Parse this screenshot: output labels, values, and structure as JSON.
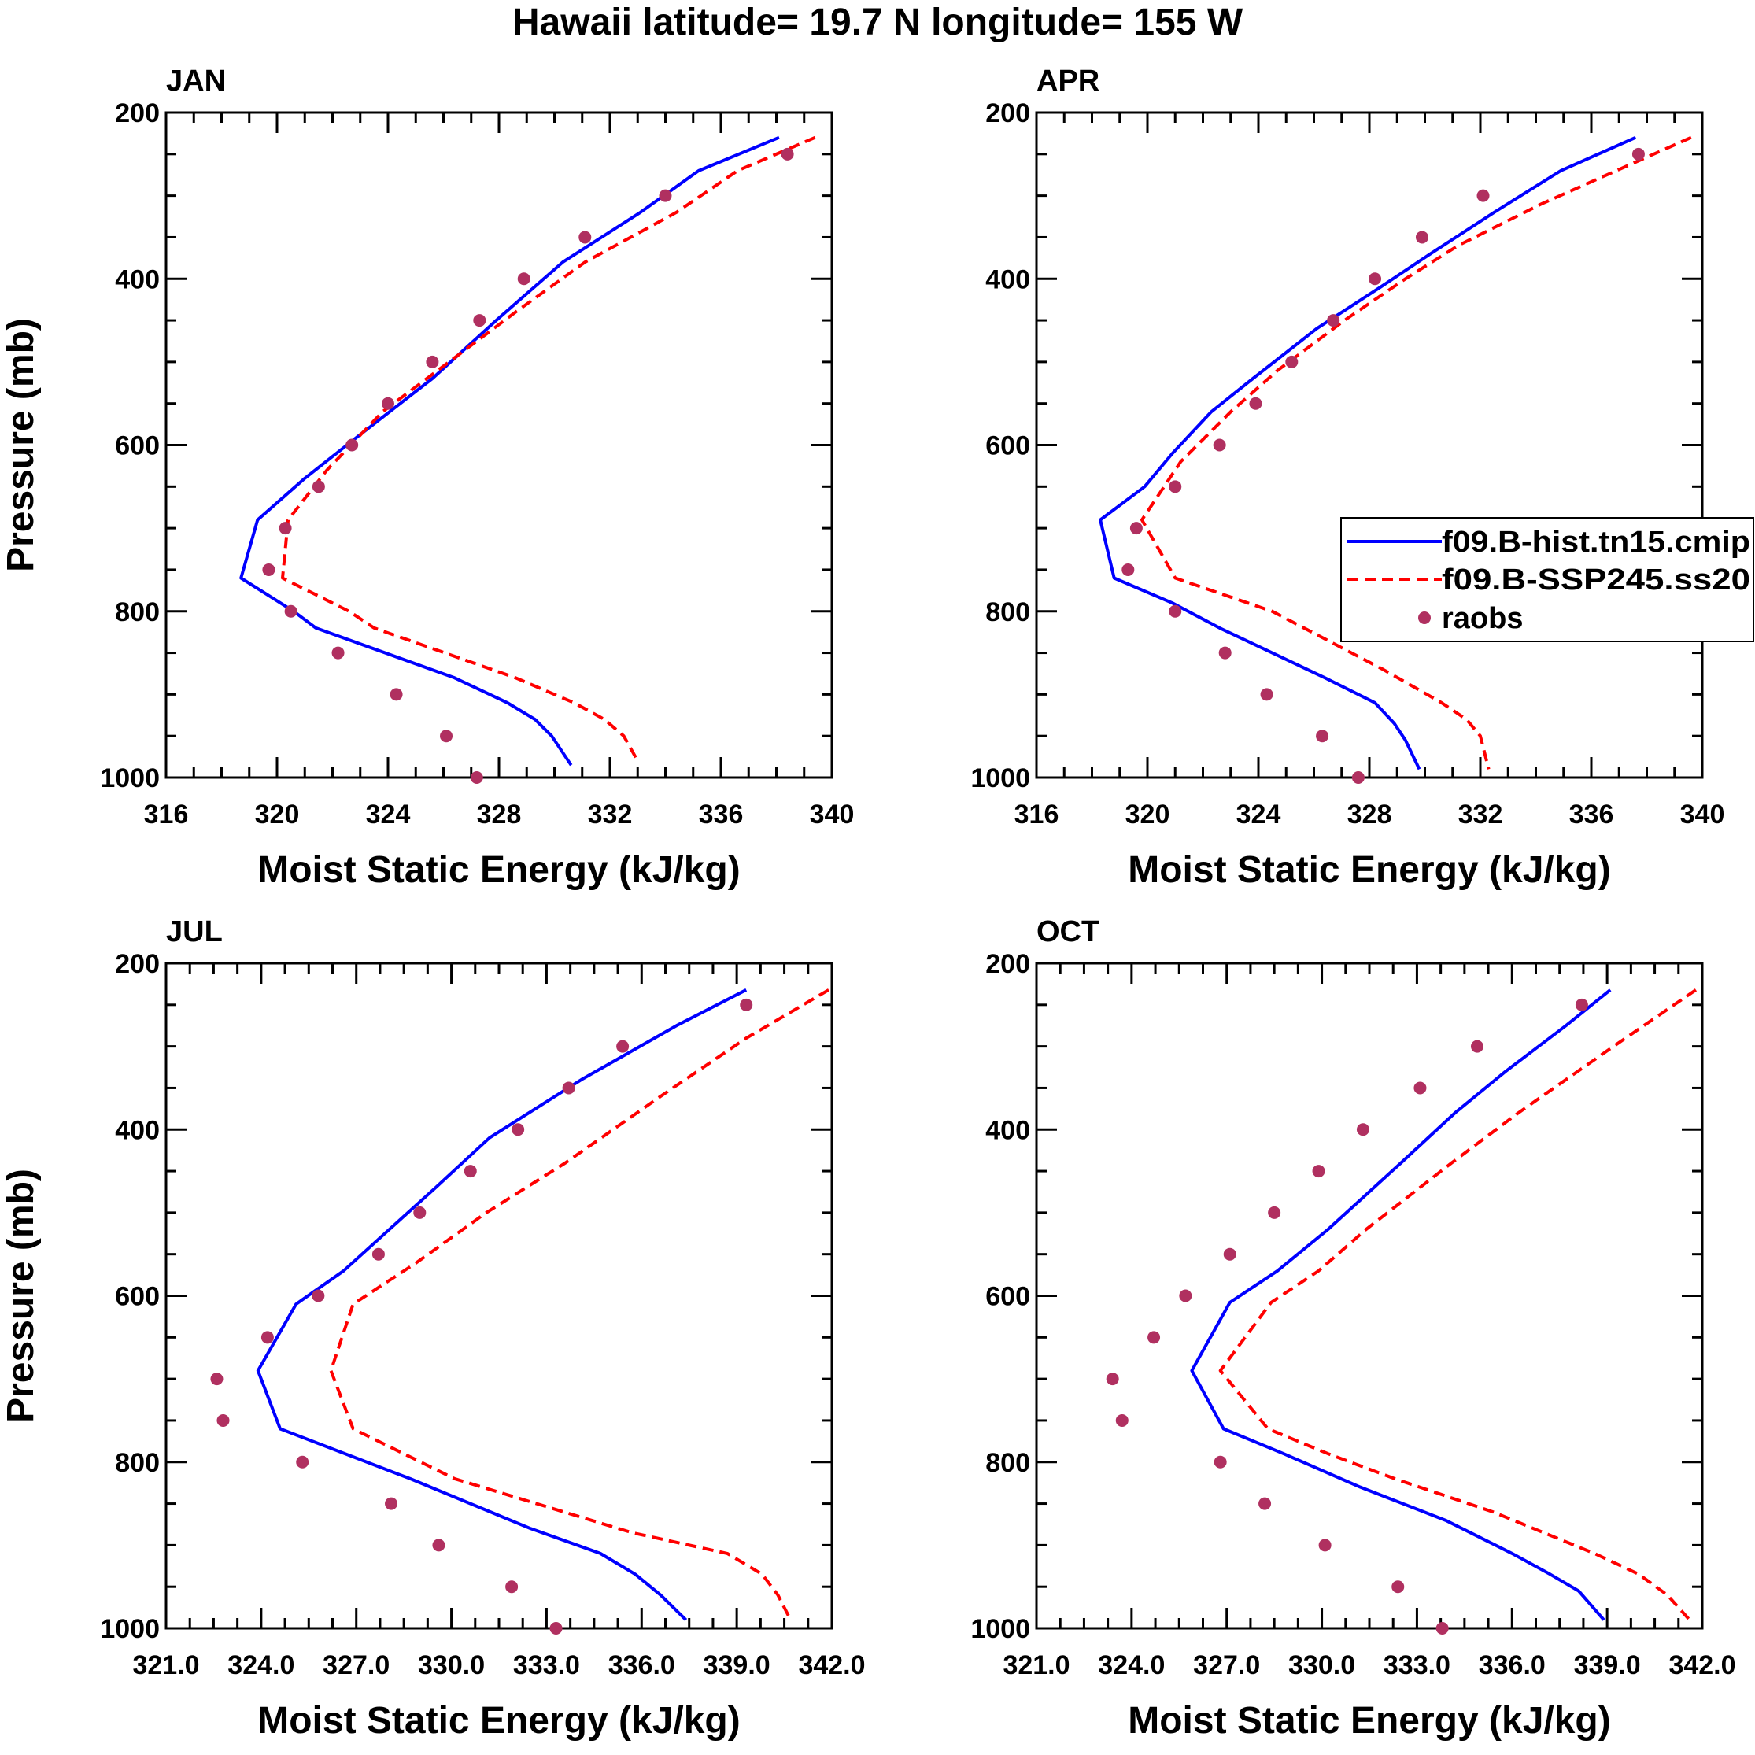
{
  "figure": {
    "title": "Hawaii  latitude= 19.7 N longitude= 155 W",
    "legend": {
      "entries": [
        {
          "label": "f09.B-hist.tn15.cmip",
          "color": "#0000ff",
          "style": "solid"
        },
        {
          "label": "f09.B-SSP245.ss20",
          "color": "#ff0000",
          "style": "dashed"
        },
        {
          "label": "raobs",
          "color": "#b03060",
          "style": "marker"
        }
      ]
    }
  },
  "chart_data": [
    {
      "type": "line",
      "panel": "JAN",
      "title": "JAN",
      "xlabel": "Moist Static Energy (kJ/kg)",
      "ylabel": "Pressure (mb)",
      "xlim": [
        316,
        340
      ],
      "ylim": [
        200,
        1000
      ],
      "y_inverted": true,
      "xticks": [
        316,
        320,
        324,
        328,
        332,
        336,
        340
      ],
      "xtick_labels": [
        "316",
        "320",
        "324",
        "328",
        "332",
        "336",
        "340"
      ],
      "yticks": [
        200,
        400,
        600,
        800,
        1000
      ],
      "ytick_labels": [
        "200",
        "400",
        "600",
        "800",
        "1000"
      ],
      "series": [
        {
          "name": "f09.B-hist.tn15.cmip",
          "style": "solid",
          "color": "#0000ff",
          "points": [
            [
              338.1,
              230
            ],
            [
              335.2,
              270
            ],
            [
              333.1,
              320
            ],
            [
              330.3,
              380
            ],
            [
              327.9,
              450
            ],
            [
              325.6,
              520
            ],
            [
              322.9,
              590
            ],
            [
              321.0,
              640
            ],
            [
              319.3,
              690
            ],
            [
              318.7,
              760
            ],
            [
              320.6,
              800
            ],
            [
              321.4,
              820
            ],
            [
              326.4,
              880
            ],
            [
              328.3,
              910
            ],
            [
              329.3,
              930
            ],
            [
              329.9,
              950
            ],
            [
              330.6,
              985
            ]
          ]
        },
        {
          "name": "f09.B-SSP245.ss20",
          "style": "dashed",
          "color": "#ff0000",
          "points": [
            [
              339.4,
              230
            ],
            [
              336.6,
              270
            ],
            [
              334.4,
              320
            ],
            [
              331.1,
              380
            ],
            [
              328.6,
              440
            ],
            [
              326.2,
              500
            ],
            [
              323.8,
              560
            ],
            [
              321.8,
              630
            ],
            [
              320.4,
              690
            ],
            [
              320.2,
              760
            ],
            [
              322.6,
              800
            ],
            [
              323.5,
              820
            ],
            [
              328.6,
              880
            ],
            [
              330.7,
              910
            ],
            [
              331.8,
              930
            ],
            [
              332.5,
              950
            ],
            [
              333.0,
              980
            ]
          ]
        },
        {
          "name": "raobs",
          "style": "marker",
          "color": "#b03060",
          "points": [
            [
              338.4,
              250
            ],
            [
              334.0,
              300
            ],
            [
              331.1,
              350
            ],
            [
              328.9,
              400
            ],
            [
              327.3,
              450
            ],
            [
              325.6,
              500
            ],
            [
              324.0,
              550
            ],
            [
              322.7,
              600
            ],
            [
              321.5,
              650
            ],
            [
              320.3,
              700
            ],
            [
              319.7,
              750
            ],
            [
              320.5,
              800
            ],
            [
              322.2,
              850
            ],
            [
              324.3,
              900
            ],
            [
              326.1,
              950
            ],
            [
              327.2,
              1000
            ]
          ]
        }
      ]
    },
    {
      "type": "line",
      "panel": "APR",
      "title": "APR",
      "xlabel": "Moist Static Energy (kJ/kg)",
      "ylabel": "Pressure (mb)",
      "xlim": [
        316,
        340
      ],
      "ylim": [
        200,
        1000
      ],
      "y_inverted": true,
      "xticks": [
        316,
        320,
        324,
        328,
        332,
        336,
        340
      ],
      "xtick_labels": [
        "316",
        "320",
        "324",
        "328",
        "332",
        "336",
        "340"
      ],
      "yticks": [
        200,
        400,
        600,
        800,
        1000
      ],
      "ytick_labels": [
        "200",
        "400",
        "600",
        "800",
        "1000"
      ],
      "series": [
        {
          "name": "f09.B-hist.tn15.cmip",
          "style": "solid",
          "color": "#0000ff",
          "points": [
            [
              337.6,
              230
            ],
            [
              334.9,
              270
            ],
            [
              332.5,
              320
            ],
            [
              330.2,
              370
            ],
            [
              328.4,
              410
            ],
            [
              326.1,
              460
            ],
            [
              323.8,
              520
            ],
            [
              322.3,
              560
            ],
            [
              320.9,
              610
            ],
            [
              319.9,
              650
            ],
            [
              318.3,
              690
            ],
            [
              318.8,
              760
            ],
            [
              320.9,
              790
            ],
            [
              322.6,
              820
            ],
            [
              326.4,
              880
            ],
            [
              328.2,
              910
            ],
            [
              328.9,
              935
            ],
            [
              329.3,
              955
            ],
            [
              329.8,
              990
            ]
          ]
        },
        {
          "name": "f09.B-SSP245.ss20",
          "style": "dashed",
          "color": "#ff0000",
          "points": [
            [
              339.6,
              230
            ],
            [
              336.9,
              270
            ],
            [
              334.2,
              310
            ],
            [
              331.2,
              360
            ],
            [
              329.3,
              400
            ],
            [
              327.1,
              450
            ],
            [
              324.7,
              510
            ],
            [
              323.0,
              560
            ],
            [
              321.2,
              620
            ],
            [
              319.8,
              690
            ],
            [
              321.0,
              760
            ],
            [
              324.5,
              800
            ],
            [
              328.5,
              870
            ],
            [
              330.6,
              910
            ],
            [
              331.5,
              930
            ],
            [
              332.0,
              950
            ],
            [
              332.3,
              990
            ]
          ]
        },
        {
          "name": "raobs",
          "style": "marker",
          "color": "#b03060",
          "points": [
            [
              337.7,
              250
            ],
            [
              332.1,
              300
            ],
            [
              329.9,
              350
            ],
            [
              328.2,
              400
            ],
            [
              326.7,
              450
            ],
            [
              325.2,
              500
            ],
            [
              323.9,
              550
            ],
            [
              322.6,
              600
            ],
            [
              321.0,
              650
            ],
            [
              319.6,
              700
            ],
            [
              319.3,
              750
            ],
            [
              321.0,
              800
            ],
            [
              322.8,
              850
            ],
            [
              324.3,
              900
            ],
            [
              326.3,
              950
            ],
            [
              327.6,
              1000
            ]
          ]
        }
      ]
    },
    {
      "type": "line",
      "panel": "JUL",
      "title": "JUL",
      "xlabel": "Moist Static Energy (kJ/kg)",
      "ylabel": "Pressure (mb)",
      "xlim": [
        321.0,
        342.0
      ],
      "ylim": [
        200,
        1000
      ],
      "y_inverted": true,
      "xticks": [
        321.0,
        324.0,
        327.0,
        330.0,
        333.0,
        336.0,
        339.0,
        342.0
      ],
      "xtick_labels": [
        "321.0",
        "324.0",
        "327.0",
        "330.0",
        "333.0",
        "336.0",
        "339.0",
        "342.0"
      ],
      "yticks": [
        200,
        400,
        600,
        800,
        1000
      ],
      "ytick_labels": [
        "200",
        "400",
        "600",
        "800",
        "1000"
      ],
      "series": [
        {
          "name": "f09.B-hist.tn15.cmip",
          "style": "solid",
          "color": "#0000ff",
          "points": [
            [
              339.3,
              232
            ],
            [
              337.1,
              275
            ],
            [
              334.1,
              340
            ],
            [
              331.2,
              410
            ],
            [
              329.5,
              470
            ],
            [
              327.9,
              525
            ],
            [
              326.6,
              570
            ],
            [
              325.1,
              610
            ],
            [
              323.9,
              690
            ],
            [
              324.6,
              760
            ],
            [
              328.7,
              820
            ],
            [
              332.5,
              880
            ],
            [
              334.7,
              910
            ],
            [
              335.8,
              935
            ],
            [
              336.6,
              960
            ],
            [
              337.4,
              990
            ]
          ]
        },
        {
          "name": "f09.B-SSP245.ss20",
          "style": "dashed",
          "color": "#ff0000",
          "points": [
            [
              341.9,
              232
            ],
            [
              339.3,
              290
            ],
            [
              336.6,
              360
            ],
            [
              333.6,
              440
            ],
            [
              331.1,
              500
            ],
            [
              328.9,
              560
            ],
            [
              326.9,
              610
            ],
            [
              326.2,
              690
            ],
            [
              326.9,
              760
            ],
            [
              330.1,
              820
            ],
            [
              335.7,
              885
            ],
            [
              338.7,
              910
            ],
            [
              339.8,
              935
            ],
            [
              340.3,
              960
            ],
            [
              340.7,
              990
            ]
          ]
        },
        {
          "name": "raobs",
          "style": "marker",
          "color": "#b03060",
          "points": [
            [
              339.3,
              250
            ],
            [
              335.4,
              300
            ],
            [
              333.7,
              350
            ],
            [
              332.1,
              400
            ],
            [
              330.6,
              450
            ],
            [
              329.0,
              500
            ],
            [
              327.7,
              550
            ],
            [
              325.8,
              600
            ],
            [
              324.2,
              650
            ],
            [
              322.6,
              700
            ],
            [
              322.8,
              750
            ],
            [
              325.3,
              800
            ],
            [
              328.1,
              850
            ],
            [
              329.6,
              900
            ],
            [
              331.9,
              950
            ],
            [
              333.3,
              1000
            ]
          ]
        }
      ]
    },
    {
      "type": "line",
      "panel": "OCT",
      "title": "OCT",
      "xlabel": "Moist Static Energy (kJ/kg)",
      "ylabel": "Pressure (mb)",
      "xlim": [
        321.0,
        342.0
      ],
      "ylim": [
        200,
        1000
      ],
      "y_inverted": true,
      "xticks": [
        321.0,
        324.0,
        327.0,
        330.0,
        333.0,
        336.0,
        339.0,
        342.0
      ],
      "xtick_labels": [
        "321.0",
        "324.0",
        "327.0",
        "330.0",
        "333.0",
        "336.0",
        "339.0",
        "342.0"
      ],
      "yticks": [
        200,
        400,
        600,
        800,
        1000
      ],
      "ytick_labels": [
        "200",
        "400",
        "600",
        "800",
        "1000"
      ],
      "series": [
        {
          "name": "f09.B-hist.tn15.cmip",
          "style": "solid",
          "color": "#0000ff",
          "points": [
            [
              339.1,
              232
            ],
            [
              337.7,
              275
            ],
            [
              335.8,
              330
            ],
            [
              334.2,
              380
            ],
            [
              332.5,
              440
            ],
            [
              330.2,
              520
            ],
            [
              328.6,
              570
            ],
            [
              327.1,
              608
            ],
            [
              325.9,
              690
            ],
            [
              326.9,
              760
            ],
            [
              328.8,
              790
            ],
            [
              331.2,
              830
            ],
            [
              333.9,
              870
            ],
            [
              336.0,
              910
            ],
            [
              337.2,
              935
            ],
            [
              338.1,
              955
            ],
            [
              338.9,
              990
            ]
          ]
        },
        {
          "name": "f09.B-SSP245.ss20",
          "style": "dashed",
          "color": "#ff0000",
          "points": [
            [
              341.8,
              232
            ],
            [
              339.2,
              300
            ],
            [
              336.2,
              380
            ],
            [
              334.1,
              440
            ],
            [
              331.4,
              520
            ],
            [
              329.9,
              570
            ],
            [
              328.4,
              608
            ],
            [
              326.8,
              690
            ],
            [
              328.3,
              760
            ],
            [
              330.2,
              790
            ],
            [
              332.3,
              820
            ],
            [
              335.4,
              860
            ],
            [
              338.6,
              910
            ],
            [
              340.0,
              935
            ],
            [
              340.9,
              960
            ],
            [
              341.6,
              990
            ]
          ]
        },
        {
          "name": "raobs",
          "style": "marker",
          "color": "#b03060",
          "points": [
            [
              338.2,
              250
            ],
            [
              334.9,
              300
            ],
            [
              333.1,
              350
            ],
            [
              331.3,
              400
            ],
            [
              329.9,
              450
            ],
            [
              328.5,
              500
            ],
            [
              327.1,
              550
            ],
            [
              325.7,
              600
            ],
            [
              324.7,
              650
            ],
            [
              323.4,
              700
            ],
            [
              323.7,
              750
            ],
            [
              326.8,
              800
            ],
            [
              328.2,
              850
            ],
            [
              330.1,
              900
            ],
            [
              332.4,
              950
            ],
            [
              333.8,
              1000
            ]
          ]
        }
      ]
    }
  ]
}
